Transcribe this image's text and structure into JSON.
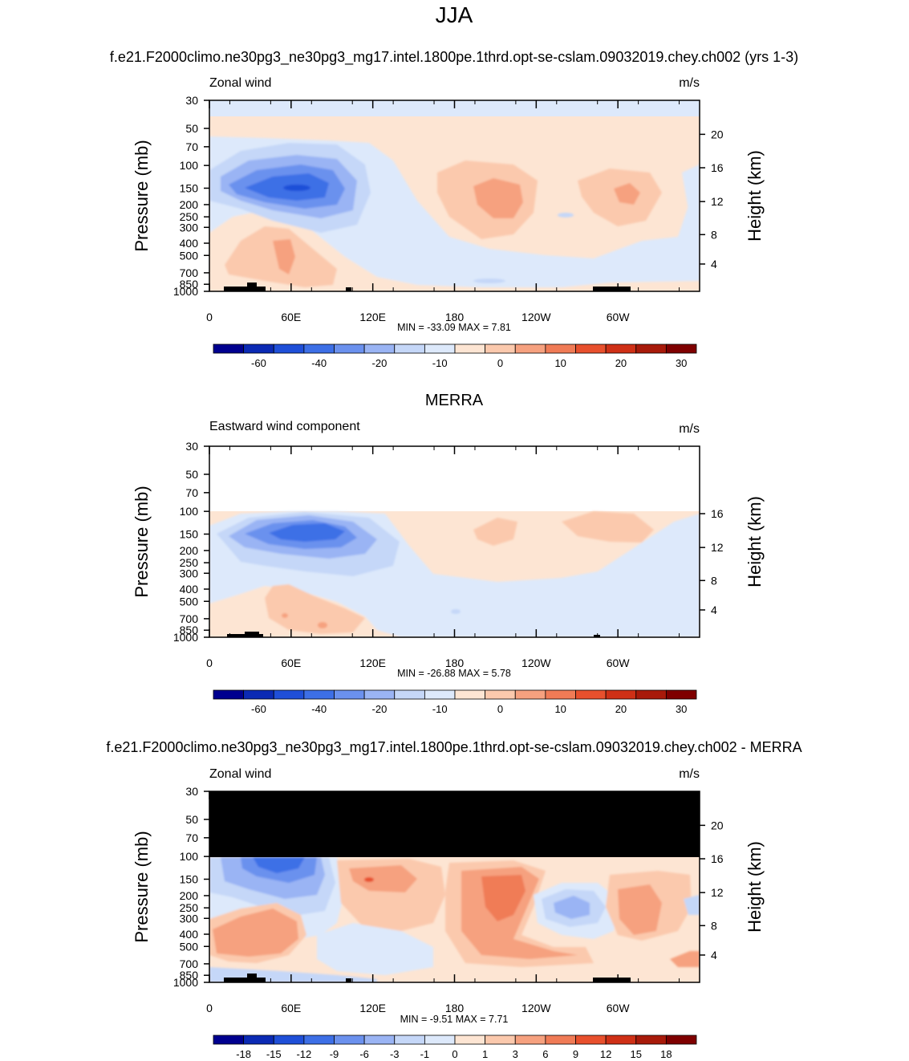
{
  "page": {
    "title": "JJA",
    "case_title": "f.e21.F2000climo.ne30pg3_ne30pg3_mg17.intel.1800pe.1thrd.opt-se-cslam.09032019.chey.ch002 (yrs 1-3)",
    "obs_title": "MERRA",
    "diff_title": "f.e21.F2000climo.ne30pg3_ne30pg3_mg17.intel.1800pe.1thrd.opt-se-cslam.09032019.chey.ch002 - MERRA"
  },
  "colors": {
    "full_scale": [
      "#00008f",
      "#0b2ab4",
      "#1f4fd8",
      "#3d6fe6",
      "#6b91ee",
      "#9ab4f4",
      "#c5d7f8",
      "#dde9fb",
      "#fde5d3",
      "#fbc9ad",
      "#f6a17f",
      "#f07b56",
      "#e8502d",
      "#cf3016",
      "#a81a0a",
      "#7f0000"
    ],
    "diff_scale": [
      "#00008f",
      "#0b2ab4",
      "#1f4fd8",
      "#3d6fe6",
      "#6b91ee",
      "#9ab4f4",
      "#c5d7f8",
      "#dde9fb",
      "#fde5d3",
      "#fbc9ad",
      "#f6a17f",
      "#f07b56",
      "#e8502d",
      "#cf3016",
      "#a81a0a",
      "#7f0000"
    ],
    "missing_fill": "#000000"
  },
  "chart_data": [
    {
      "type": "heatmap",
      "title": "Zonal wind",
      "units": "m/s",
      "ylabel": "Pressure (mb)",
      "ylabel_right": "Height (km)",
      "x_ticks": [
        "0",
        "60E",
        "120E",
        "180",
        "120W",
        "60W"
      ],
      "y_ticks": [
        "30",
        "50",
        "70",
        "100",
        "150",
        "200",
        "250",
        "300",
        "400",
        "500",
        "700",
        "850",
        "1000"
      ],
      "y_ticks_right": [
        "20",
        "16",
        "12",
        "8",
        "4"
      ],
      "stats": "MIN = -33.09  MAX =   7.81",
      "colorbar_labels": [
        "-60",
        "-40",
        "-20",
        "-10",
        "0",
        "10",
        "20",
        "30"
      ],
      "min": -33.09,
      "max": 7.81
    },
    {
      "type": "heatmap",
      "title": "Eastward wind component",
      "units": "m/s",
      "ylabel": "Pressure (mb)",
      "ylabel_right": "Height (km)",
      "x_ticks": [
        "0",
        "60E",
        "120E",
        "180",
        "120W",
        "60W"
      ],
      "y_ticks": [
        "30",
        "50",
        "70",
        "100",
        "150",
        "200",
        "250",
        "300",
        "400",
        "500",
        "700",
        "850",
        "1000"
      ],
      "y_ticks_right": [
        "16",
        "12",
        "8",
        "4"
      ],
      "stats": "MIN = -26.88  MAX =   5.78",
      "colorbar_labels": [
        "-60",
        "-40",
        "-20",
        "-10",
        "0",
        "10",
        "20",
        "30"
      ],
      "min": -26.88,
      "max": 5.78
    },
    {
      "type": "heatmap",
      "title": "Zonal wind",
      "units": "m/s",
      "ylabel": "Pressure (mb)",
      "ylabel_right": "Height (km)",
      "x_ticks": [
        "0",
        "60E",
        "120E",
        "180",
        "120W",
        "60W"
      ],
      "y_ticks": [
        "30",
        "50",
        "70",
        "100",
        "150",
        "200",
        "250",
        "300",
        "400",
        "500",
        "700",
        "850",
        "1000"
      ],
      "y_ticks_right": [
        "20",
        "16",
        "12",
        "8",
        "4"
      ],
      "stats": "MIN =  -9.51  MAX =   7.71",
      "colorbar_labels": [
        "-18",
        "-15",
        "-12",
        "-9",
        "-6",
        "-3",
        "-1",
        "0",
        "1",
        "3",
        "6",
        "9",
        "12",
        "15",
        "18"
      ],
      "min": -9.51,
      "max": 7.71
    }
  ]
}
